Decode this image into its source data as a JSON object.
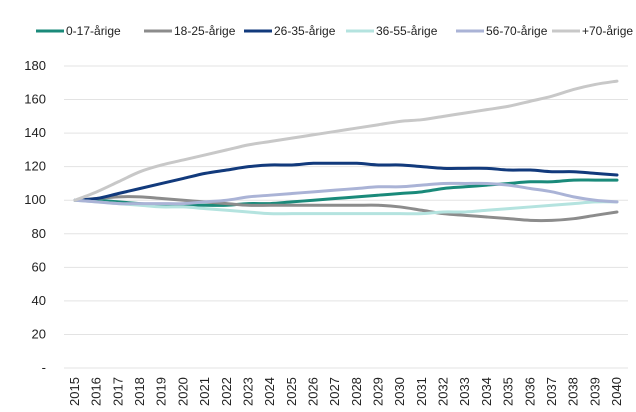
{
  "chart_data": {
    "type": "line",
    "title": "",
    "xlabel": "",
    "ylabel": "",
    "ylim": [
      0,
      180
    ],
    "y_ticks": [
      {
        "value": 0,
        "label": "-"
      },
      {
        "value": 20,
        "label": "20"
      },
      {
        "value": 40,
        "label": "40"
      },
      {
        "value": 60,
        "label": "60"
      },
      {
        "value": 80,
        "label": "80"
      },
      {
        "value": 100,
        "label": "100"
      },
      {
        "value": 120,
        "label": "120"
      },
      {
        "value": 140,
        "label": "140"
      },
      {
        "value": 160,
        "label": "160"
      },
      {
        "value": 180,
        "label": "180"
      }
    ],
    "grid": true,
    "legend_position": "top",
    "x": [
      "2015",
      "2016",
      "2017",
      "2018",
      "2019",
      "2020",
      "2021",
      "2022",
      "2023",
      "2024",
      "2025",
      "2026",
      "2027",
      "2028",
      "2029",
      "2030",
      "2031",
      "2032",
      "2033",
      "2034",
      "2035",
      "2036",
      "2037",
      "2038",
      "2039",
      "2040"
    ],
    "series": [
      {
        "name": "0-17-årige",
        "color": "#1a8a7a",
        "values": [
          100,
          100,
          99,
          98,
          97,
          97,
          97,
          97,
          98,
          98,
          99,
          100,
          101,
          102,
          103,
          104,
          105,
          107,
          108,
          109,
          110,
          111,
          111,
          112,
          112,
          112
        ]
      },
      {
        "name": "18-25-årige",
        "color": "#8c8c8c",
        "values": [
          100,
          101,
          102,
          102,
          101,
          100,
          99,
          98,
          97,
          97,
          97,
          97,
          97,
          97,
          97,
          96,
          94,
          92,
          91,
          90,
          89,
          88,
          88,
          89,
          91,
          93
        ]
      },
      {
        "name": "26-35-årige",
        "color": "#123a7c",
        "values": [
          100,
          101,
          104,
          107,
          110,
          113,
          116,
          118,
          120,
          121,
          121,
          122,
          122,
          122,
          121,
          121,
          120,
          119,
          119,
          119,
          118,
          118,
          117,
          117,
          116,
          115
        ]
      },
      {
        "name": "36-55-årige",
        "color": "#b4e3df",
        "values": [
          100,
          99,
          98,
          97,
          96,
          96,
          95,
          94,
          93,
          92,
          92,
          92,
          92,
          92,
          92,
          92,
          92,
          93,
          93,
          94,
          95,
          96,
          97,
          98,
          99,
          99
        ]
      },
      {
        "name": "56-70-årige",
        "color": "#aab3d6",
        "values": [
          100,
          99,
          98,
          98,
          98,
          98,
          99,
          100,
          102,
          103,
          104,
          105,
          106,
          107,
          108,
          108,
          109,
          110,
          110,
          110,
          109,
          107,
          105,
          102,
          100,
          99
        ]
      },
      {
        "name": "+70-årige",
        "color": "#c8c8c8",
        "values": [
          100,
          105,
          111,
          117,
          121,
          124,
          127,
          130,
          133,
          135,
          137,
          139,
          141,
          143,
          145,
          147,
          148,
          150,
          152,
          154,
          156,
          159,
          162,
          166,
          169,
          171
        ]
      }
    ]
  }
}
